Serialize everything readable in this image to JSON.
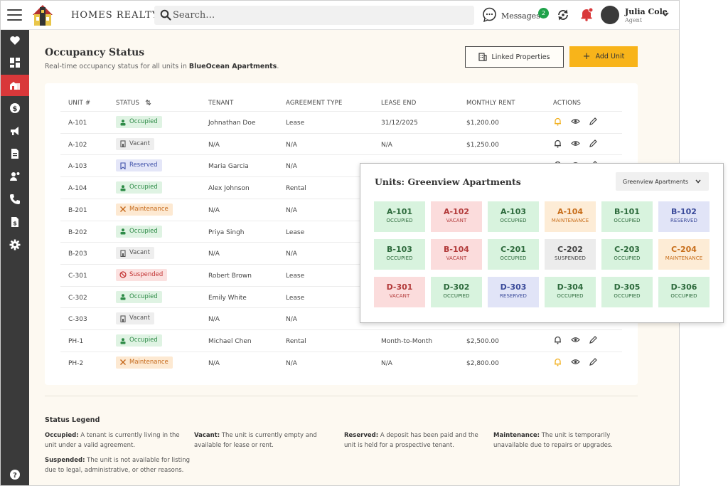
{
  "header": {
    "brand": "HOMES REALTY",
    "search_placeholder": "Search…",
    "messages_label": "Messages",
    "messages_count": "2",
    "user_name": "Julia Cole",
    "user_role": "Agent"
  },
  "sidebar": {
    "items": [
      {
        "icon": "heart-icon"
      },
      {
        "icon": "dashboard-icon"
      },
      {
        "icon": "properties-icon",
        "active": true
      },
      {
        "icon": "dollar-icon"
      },
      {
        "icon": "megaphone-icon"
      },
      {
        "icon": "document-icon"
      },
      {
        "icon": "clients-icon"
      },
      {
        "icon": "phone-icon"
      },
      {
        "icon": "invoice-icon"
      },
      {
        "icon": "settings-icon"
      },
      {
        "icon": "help-icon"
      }
    ]
  },
  "page": {
    "title": "Occupancy Status",
    "subtitle_prefix": "Real-time occupancy status for all units in ",
    "subtitle_property": "BlueOcean Apartments",
    "subtitle_suffix": ".",
    "linked_label": "Linked Properties",
    "add_label": "Add Unit"
  },
  "table": {
    "columns": [
      "UNIT #",
      "STATUS",
      "TENANT",
      "AGREEMENT TYPE",
      "LEASE END",
      "MONTHLY RENT",
      "ACTIONS"
    ],
    "rows": [
      {
        "unit": "A-101",
        "status": "Occupied",
        "tenant": "Johnathan Doe",
        "agreement": "Lease",
        "lease_end": "31/12/2025",
        "rent": "$1,200.00",
        "bell_active": true
      },
      {
        "unit": "A-102",
        "status": "Vacant",
        "tenant": "N/A",
        "agreement": "N/A",
        "lease_end": "N/A",
        "rent": "$1,250.00",
        "bell_active": false
      },
      {
        "unit": "A-103",
        "status": "Reserved",
        "tenant": "Maria Garcia",
        "agreement": "N/A",
        "lease_end": "",
        "rent": "",
        "bell_active": false
      },
      {
        "unit": "A-104",
        "status": "Occupied",
        "tenant": "Alex Johnson",
        "agreement": "Rental",
        "lease_end": "",
        "rent": "",
        "bell_active": false
      },
      {
        "unit": "B-201",
        "status": "Maintenance",
        "tenant": "N/A",
        "agreement": "N/A",
        "lease_end": "",
        "rent": "",
        "bell_active": false
      },
      {
        "unit": "B-202",
        "status": "Occupied",
        "tenant": "Priya Singh",
        "agreement": "Lease",
        "lease_end": "",
        "rent": "",
        "bell_active": false
      },
      {
        "unit": "B-203",
        "status": "Vacant",
        "tenant": "N/A",
        "agreement": "N/A",
        "lease_end": "",
        "rent": "",
        "bell_active": false
      },
      {
        "unit": "C-301",
        "status": "Suspended",
        "tenant": "Robert Brown",
        "agreement": "Lease",
        "lease_end": "",
        "rent": "",
        "bell_active": false
      },
      {
        "unit": "C-302",
        "status": "Occupied",
        "tenant": "Emily White",
        "agreement": "Lease",
        "lease_end": "",
        "rent": "",
        "bell_active": false
      },
      {
        "unit": "C-303",
        "status": "Vacant",
        "tenant": "N/A",
        "agreement": "N/A",
        "lease_end": "",
        "rent": "",
        "bell_active": false
      },
      {
        "unit": "PH-1",
        "status": "Occupied",
        "tenant": "Michael Chen",
        "agreement": "Rental",
        "lease_end": "Month-to-Month",
        "rent": "$2,500.00",
        "bell_active": false
      },
      {
        "unit": "PH-2",
        "status": "Maintenance",
        "tenant": "N/A",
        "agreement": "N/A",
        "lease_end": "N/A",
        "rent": "$2,800.00",
        "bell_active": true
      }
    ]
  },
  "legend": {
    "title": "Status Legend",
    "items": [
      {
        "term": "Occupied:",
        "desc": " A tenant is currently living in the unit under a valid agreement."
      },
      {
        "term": "Vacant:",
        "desc": " The unit is currently empty and available for lease or rent."
      },
      {
        "term": "Reserved:",
        "desc": " A deposit has been paid and the unit is held for a prospective tenant."
      },
      {
        "term": "Maintenance:",
        "desc": " The unit is temporarily unavailable due to repairs or upgrades."
      },
      {
        "term": "Suspended:",
        "desc": " The unit is not available for listing due to legal, administrative, or other reasons."
      }
    ]
  },
  "popup": {
    "title": "Units: Greenview Apartments",
    "select_value": "Greenview Apartments",
    "units": [
      {
        "id": "A-101",
        "status": "OCCUPIED"
      },
      {
        "id": "A-102",
        "status": "VACANT"
      },
      {
        "id": "A-103",
        "status": "OCCUPIED"
      },
      {
        "id": "A-104",
        "status": "MAINTENANCE"
      },
      {
        "id": "B-101",
        "status": "OCCUPIED"
      },
      {
        "id": "B-102",
        "status": "RESERVED"
      },
      {
        "id": "B-103",
        "status": "OCCUPIED"
      },
      {
        "id": "B-104",
        "status": "VACANT"
      },
      {
        "id": "C-201",
        "status": "OCCUPIED"
      },
      {
        "id": "C-202",
        "status": "SUSPENDED"
      },
      {
        "id": "C-203",
        "status": "OCCUPIED"
      },
      {
        "id": "C-204",
        "status": "MAINTENANCE"
      },
      {
        "id": "D-301",
        "status": "VACANT"
      },
      {
        "id": "D-302",
        "status": "OCCUPIED"
      },
      {
        "id": "D-303",
        "status": "RESERVED"
      },
      {
        "id": "D-304",
        "status": "OCCUPIED"
      },
      {
        "id": "D-305",
        "status": "OCCUPIED"
      },
      {
        "id": "D-306",
        "status": "OCCUPIED"
      }
    ]
  },
  "colors": {
    "brand_red": "#d9383a",
    "accent_yellow": "#f8b41a",
    "sidebar_bg": "#3a3a3a",
    "page_bg": "#fdf9f1"
  }
}
